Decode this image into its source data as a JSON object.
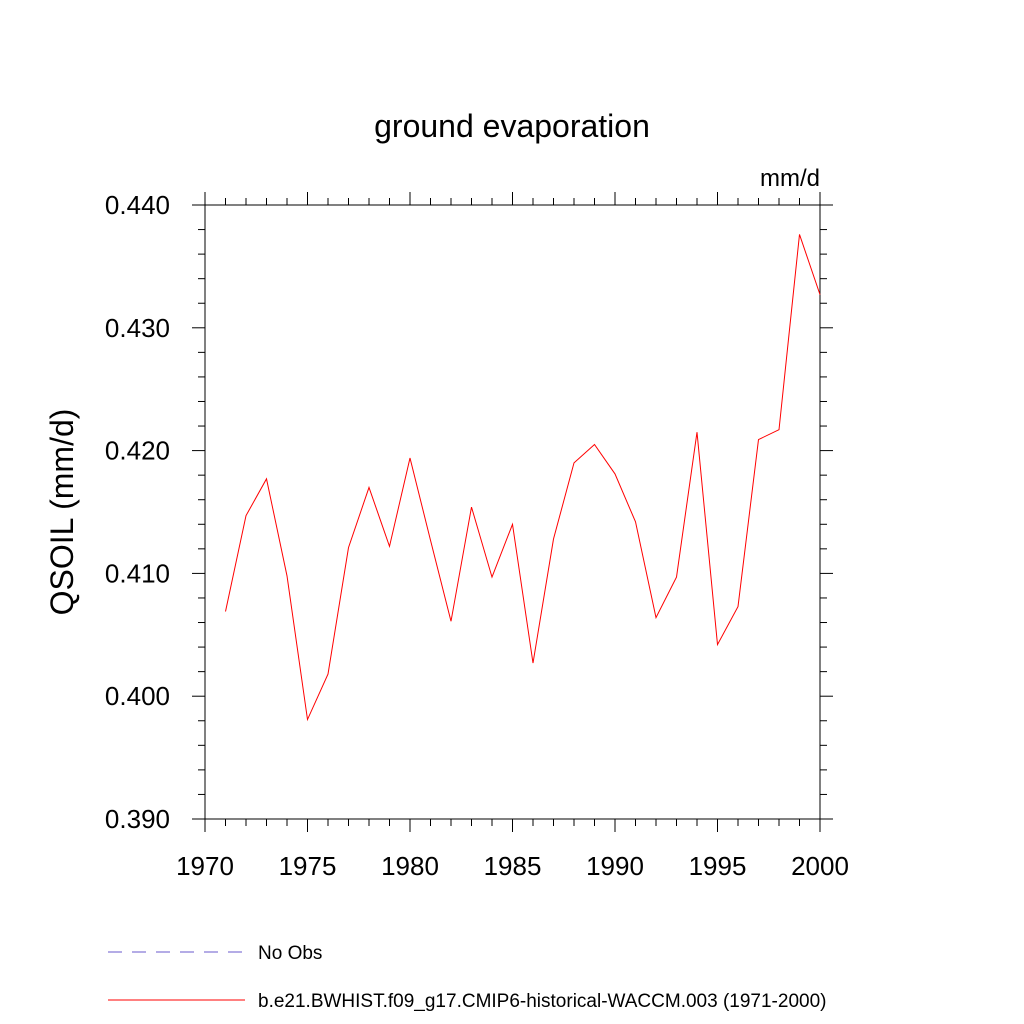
{
  "chart_data": {
    "type": "line",
    "title": "ground evaporation",
    "units": "mm/d",
    "ylabel": "QSOIL  (mm/d)",
    "xlabel": "",
    "xlim": [
      1970,
      2000
    ],
    "ylim": [
      0.39,
      0.44
    ],
    "x_ticks": [
      "1970",
      "1975",
      "1980",
      "1985",
      "1990",
      "1995",
      "2000"
    ],
    "y_ticks": [
      "0.390",
      "0.400",
      "0.410",
      "0.420",
      "0.430",
      "0.440"
    ],
    "grid": false,
    "legend_position": "bottom-left",
    "series": [
      {
        "name": "b.e21.BWHIST.f09_g17.CMIP6-historical-WACCM.003 (1971-2000)",
        "color": "#ff0000",
        "style": "solid",
        "x": [
          1971,
          1972,
          1973,
          1974,
          1975,
          1976,
          1977,
          1978,
          1979,
          1980,
          1981,
          1982,
          1983,
          1984,
          1985,
          1986,
          1987,
          1988,
          1989,
          1990,
          1991,
          1992,
          1993,
          1994,
          1995,
          1996,
          1997,
          1998,
          1999,
          2000
        ],
        "values": [
          0.4069,
          0.4147,
          0.4177,
          0.4098,
          0.3981,
          0.4018,
          0.4121,
          0.417,
          0.4122,
          0.4194,
          0.4127,
          0.4061,
          0.4154,
          0.4097,
          0.414,
          0.4027,
          0.4128,
          0.419,
          0.4205,
          0.4181,
          0.4142,
          0.4064,
          0.4097,
          0.4215,
          0.4042,
          0.4073,
          0.4209,
          0.4217,
          0.4376,
          0.4327
        ]
      }
    ],
    "legend": [
      {
        "label": "No Obs",
        "color": "#6a5acd",
        "style": "dashed"
      },
      {
        "label": "b.e21.BWHIST.f09_g17.CMIP6-historical-WACCM.003 (1971-2000)",
        "color": "#ff0000",
        "style": "solid"
      }
    ]
  }
}
